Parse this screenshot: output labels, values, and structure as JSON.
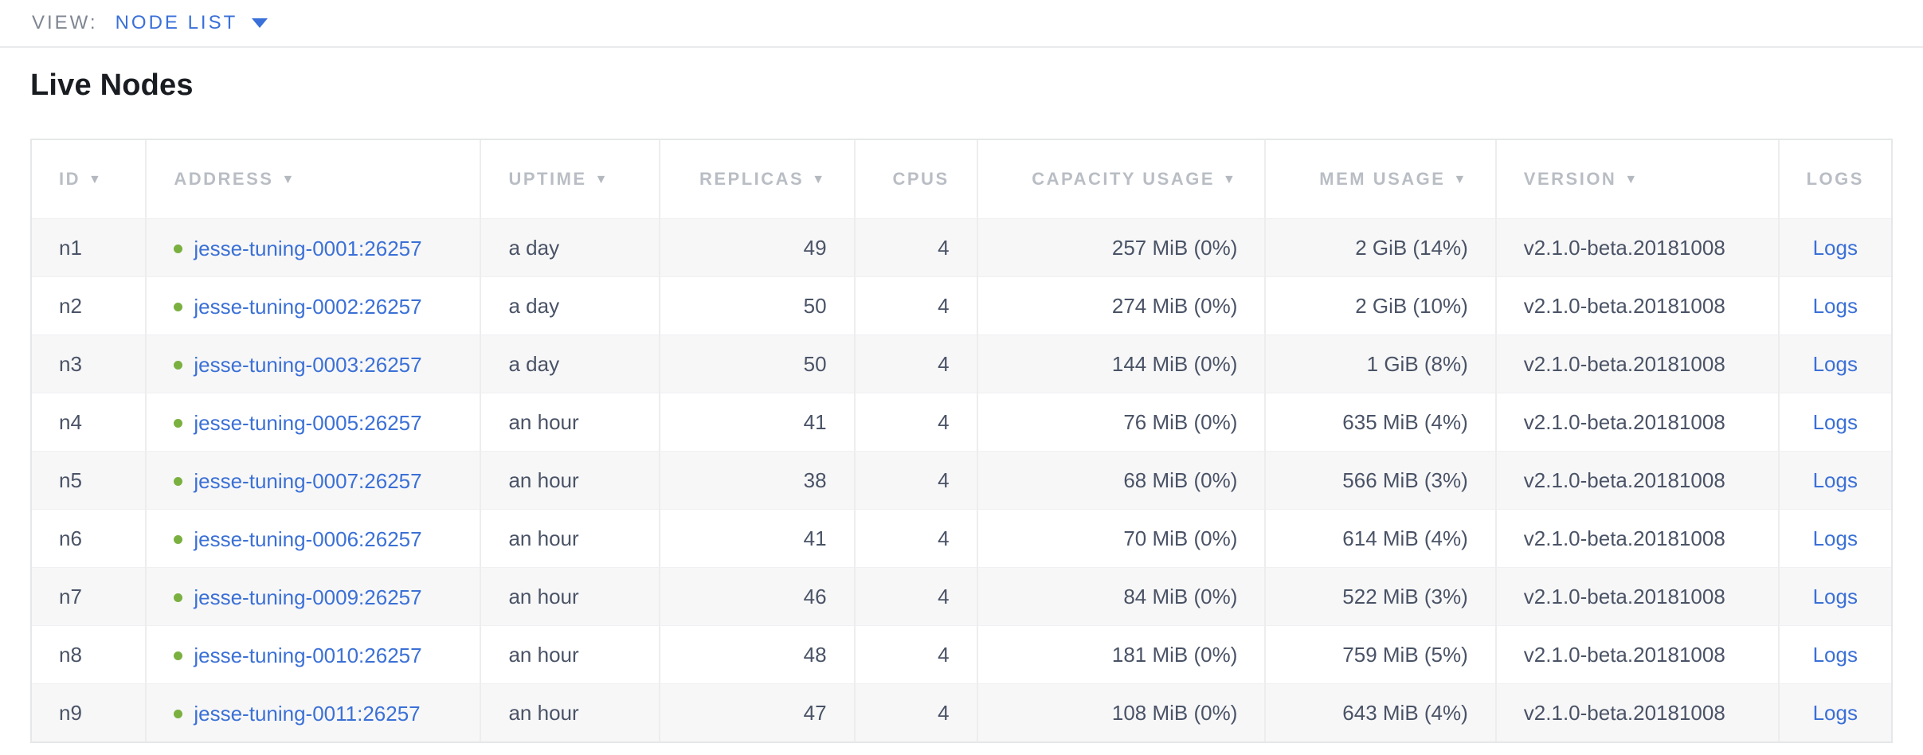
{
  "view_bar": {
    "label": "VIEW:",
    "selected": "NODE LIST"
  },
  "page": {
    "title": "Live Nodes"
  },
  "icons": {
    "sort_arrow": "▼"
  },
  "colors": {
    "link_blue": "#3b70d6",
    "view_accent_blue": "#3a70d9",
    "status_live_green": "#7ab03f",
    "header_gray": "#b9bdc4",
    "cell_text": "#4a5366",
    "row_stripe": "#f7f7f8"
  },
  "table": {
    "columns": [
      {
        "label": "ID",
        "key": "id",
        "sortable": true,
        "align": "left"
      },
      {
        "label": "ADDRESS",
        "key": "address",
        "sortable": true,
        "align": "left"
      },
      {
        "label": "UPTIME",
        "key": "uptime",
        "sortable": true,
        "align": "left"
      },
      {
        "label": "REPLICAS",
        "key": "replicas",
        "sortable": true,
        "align": "right"
      },
      {
        "label": "CPUS",
        "key": "cpus",
        "sortable": false,
        "align": "right"
      },
      {
        "label": "CAPACITY USAGE",
        "key": "capacity_usage",
        "sortable": true,
        "align": "right"
      },
      {
        "label": "MEM USAGE",
        "key": "mem_usage",
        "sortable": true,
        "align": "right"
      },
      {
        "label": "VERSION",
        "key": "version",
        "sortable": true,
        "align": "left"
      },
      {
        "label": "LOGS",
        "key": "logs",
        "sortable": false,
        "align": "center"
      }
    ],
    "rows": [
      {
        "id": "n1",
        "address": "jesse-tuning-0001:26257",
        "uptime": "a day",
        "replicas": "49",
        "cpus": "4",
        "capacity_usage": "257 MiB (0%)",
        "mem_usage": "2 GiB (14%)",
        "version": "v2.1.0-beta.20181008",
        "logs_label": "Logs"
      },
      {
        "id": "n2",
        "address": "jesse-tuning-0002:26257",
        "uptime": "a day",
        "replicas": "50",
        "cpus": "4",
        "capacity_usage": "274 MiB (0%)",
        "mem_usage": "2 GiB (10%)",
        "version": "v2.1.0-beta.20181008",
        "logs_label": "Logs"
      },
      {
        "id": "n3",
        "address": "jesse-tuning-0003:26257",
        "uptime": "a day",
        "replicas": "50",
        "cpus": "4",
        "capacity_usage": "144 MiB (0%)",
        "mem_usage": "1 GiB (8%)",
        "version": "v2.1.0-beta.20181008",
        "logs_label": "Logs"
      },
      {
        "id": "n4",
        "address": "jesse-tuning-0005:26257",
        "uptime": "an hour",
        "replicas": "41",
        "cpus": "4",
        "capacity_usage": "76 MiB (0%)",
        "mem_usage": "635 MiB (4%)",
        "version": "v2.1.0-beta.20181008",
        "logs_label": "Logs"
      },
      {
        "id": "n5",
        "address": "jesse-tuning-0007:26257",
        "uptime": "an hour",
        "replicas": "38",
        "cpus": "4",
        "capacity_usage": "68 MiB (0%)",
        "mem_usage": "566 MiB (3%)",
        "version": "v2.1.0-beta.20181008",
        "logs_label": "Logs"
      },
      {
        "id": "n6",
        "address": "jesse-tuning-0006:26257",
        "uptime": "an hour",
        "replicas": "41",
        "cpus": "4",
        "capacity_usage": "70 MiB (0%)",
        "mem_usage": "614 MiB (4%)",
        "version": "v2.1.0-beta.20181008",
        "logs_label": "Logs"
      },
      {
        "id": "n7",
        "address": "jesse-tuning-0009:26257",
        "uptime": "an hour",
        "replicas": "46",
        "cpus": "4",
        "capacity_usage": "84 MiB (0%)",
        "mem_usage": "522 MiB (3%)",
        "version": "v2.1.0-beta.20181008",
        "logs_label": "Logs"
      },
      {
        "id": "n8",
        "address": "jesse-tuning-0010:26257",
        "uptime": "an hour",
        "replicas": "48",
        "cpus": "4",
        "capacity_usage": "181 MiB (0%)",
        "mem_usage": "759 MiB (5%)",
        "version": "v2.1.0-beta.20181008",
        "logs_label": "Logs"
      },
      {
        "id": "n9",
        "address": "jesse-tuning-0011:26257",
        "uptime": "an hour",
        "replicas": "47",
        "cpus": "4",
        "capacity_usage": "108 MiB (0%)",
        "mem_usage": "643 MiB (4%)",
        "version": "v2.1.0-beta.20181008",
        "logs_label": "Logs"
      }
    ]
  }
}
